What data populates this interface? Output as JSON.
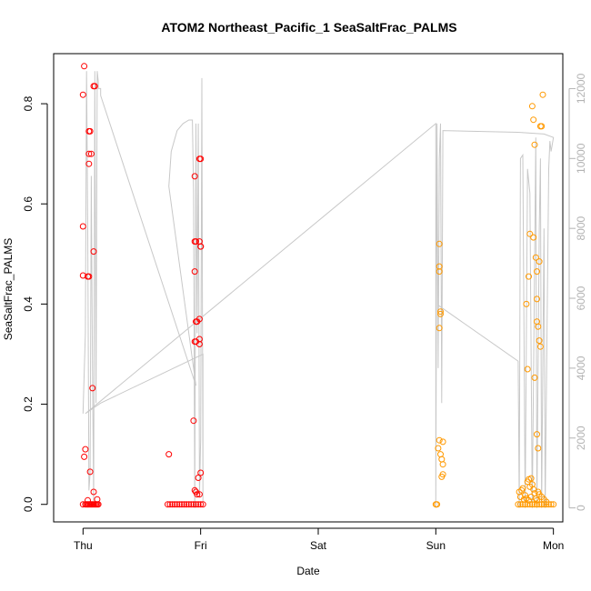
{
  "chart_data": {
    "type": "scatter",
    "title": "ATOM2 Northeast_Pacific_1 SeaSaltFrac_PALMS",
    "xlabel": "Date",
    "ylabel": "SeaSaltFrac_PALMS",
    "x_ticks": [
      "Thu",
      "Fri",
      "Sat",
      "Sun",
      "Mon"
    ],
    "x_range_days": [
      -0.25,
      4.08
    ],
    "y_left_ticks": [
      "0.0",
      "0.2",
      "0.4",
      "0.6",
      "0.8"
    ],
    "y_left_range": [
      -0.035,
      0.9
    ],
    "y_right_ticks": [
      "0",
      "2000",
      "4000",
      "6000",
      "8000",
      "10000",
      "12000"
    ],
    "y_right_range": [
      -400,
      13000
    ],
    "grid": false,
    "colors": {
      "thu_fri": "#ff0000",
      "sun_mon": "#ff9900",
      "altitude_line": "#c8c8c8",
      "right_axis": "#b3b3b3",
      "frame": "#000000"
    },
    "series": [
      {
        "color_key": "thu_fri",
        "points": [
          [
            0.01,
            0.875
          ],
          [
            0.0,
            0.818
          ],
          [
            0.0,
            0.555
          ],
          [
            0.0,
            0.457
          ],
          [
            0.02,
            0.11
          ],
          [
            0.01,
            0.095
          ],
          [
            0.05,
            0.745
          ],
          [
            0.06,
            0.745
          ],
          [
            0.05,
            0.7
          ],
          [
            0.07,
            0.7
          ],
          [
            0.05,
            0.68
          ],
          [
            0.04,
            0.455
          ],
          [
            0.05,
            0.455
          ],
          [
            0.09,
            0.835
          ],
          [
            0.1,
            0.835
          ],
          [
            0.09,
            0.505
          ],
          [
            0.08,
            0.232
          ],
          [
            0.06,
            0.065
          ],
          [
            0.09,
            0.025
          ],
          [
            0.12,
            0.01
          ],
          [
            0.04,
            0.008
          ],
          [
            0.0,
            0.0
          ],
          [
            0.02,
            0.0
          ],
          [
            0.03,
            0.0
          ],
          [
            0.04,
            0.0
          ],
          [
            0.05,
            0.0
          ],
          [
            0.06,
            0.0
          ],
          [
            0.07,
            0.0
          ],
          [
            0.08,
            0.0
          ],
          [
            0.09,
            0.0
          ],
          [
            0.1,
            0.0
          ],
          [
            0.11,
            0.0
          ],
          [
            0.12,
            0.0
          ],
          [
            0.13,
            0.0
          ],
          [
            0.73,
            0.1
          ],
          [
            0.95,
            0.655
          ],
          [
            0.95,
            0.525
          ],
          [
            0.96,
            0.525
          ],
          [
            0.99,
            0.525
          ],
          [
            1.0,
            0.515
          ],
          [
            1.0,
            0.515
          ],
          [
            0.99,
            0.69
          ],
          [
            1.0,
            0.69
          ],
          [
            0.95,
            0.465
          ],
          [
            0.96,
            0.365
          ],
          [
            0.97,
            0.365
          ],
          [
            0.99,
            0.37
          ],
          [
            0.95,
            0.325
          ],
          [
            0.96,
            0.325
          ],
          [
            0.99,
            0.33
          ],
          [
            0.99,
            0.32
          ],
          [
            0.94,
            0.167
          ],
          [
            1.0,
            0.063
          ],
          [
            0.98,
            0.053
          ],
          [
            0.95,
            0.028
          ],
          [
            0.96,
            0.025
          ],
          [
            0.97,
            0.02
          ],
          [
            0.99,
            0.02
          ],
          [
            0.72,
            0.0
          ],
          [
            0.74,
            0.0
          ],
          [
            0.76,
            0.0
          ],
          [
            0.78,
            0.0
          ],
          [
            0.8,
            0.0
          ],
          [
            0.82,
            0.0
          ],
          [
            0.84,
            0.0
          ],
          [
            0.86,
            0.0
          ],
          [
            0.88,
            0.0
          ],
          [
            0.9,
            0.0
          ],
          [
            0.92,
            0.0
          ],
          [
            0.94,
            0.0
          ],
          [
            0.96,
            0.0
          ],
          [
            0.98,
            0.0
          ],
          [
            1.0,
            0.0
          ],
          [
            1.02,
            0.0
          ]
        ]
      },
      {
        "color_key": "sun_mon",
        "points": [
          [
            3.0,
            0.0
          ],
          [
            3.01,
            0.0
          ],
          [
            3.03,
            0.52
          ],
          [
            3.03,
            0.475
          ],
          [
            3.03,
            0.465
          ],
          [
            3.04,
            0.385
          ],
          [
            3.04,
            0.38
          ],
          [
            3.03,
            0.352
          ],
          [
            3.03,
            0.128
          ],
          [
            3.06,
            0.125
          ],
          [
            3.02,
            0.112
          ],
          [
            3.04,
            0.1
          ],
          [
            3.05,
            0.09
          ],
          [
            3.06,
            0.08
          ],
          [
            3.06,
            0.06
          ],
          [
            3.05,
            0.055
          ],
          [
            3.78,
            0.27
          ],
          [
            3.79,
            0.455
          ],
          [
            3.8,
            0.54
          ],
          [
            3.83,
            0.533
          ],
          [
            3.77,
            0.4
          ],
          [
            3.85,
            0.493
          ],
          [
            3.86,
            0.465
          ],
          [
            3.88,
            0.485
          ],
          [
            3.86,
            0.41
          ],
          [
            3.86,
            0.365
          ],
          [
            3.87,
            0.355
          ],
          [
            3.88,
            0.327
          ],
          [
            3.89,
            0.315
          ],
          [
            3.84,
            0.253
          ],
          [
            3.86,
            0.14
          ],
          [
            3.87,
            0.112
          ],
          [
            3.82,
            0.795
          ],
          [
            3.83,
            0.768
          ],
          [
            3.91,
            0.818
          ],
          [
            3.89,
            0.755
          ],
          [
            3.9,
            0.755
          ],
          [
            3.84,
            0.718
          ],
          [
            3.71,
            0.025
          ],
          [
            3.72,
            0.015
          ],
          [
            3.73,
            0.028
          ],
          [
            3.74,
            0.032
          ],
          [
            3.76,
            0.018
          ],
          [
            3.78,
            0.045
          ],
          [
            3.79,
            0.05
          ],
          [
            3.8,
            0.035
          ],
          [
            3.81,
            0.052
          ],
          [
            3.82,
            0.04
          ],
          [
            3.83,
            0.03
          ],
          [
            3.84,
            0.022
          ],
          [
            3.85,
            0.012
          ],
          [
            3.86,
            0.008
          ],
          [
            3.87,
            0.025
          ],
          [
            3.88,
            0.02
          ],
          [
            3.9,
            0.015
          ],
          [
            3.92,
            0.01
          ],
          [
            3.94,
            0.005
          ],
          [
            3.77,
            0.012
          ],
          [
            3.79,
            0.008
          ],
          [
            3.81,
            0.015
          ],
          [
            3.75,
            0.01
          ],
          [
            3.7,
            0.0
          ],
          [
            3.72,
            0.0
          ],
          [
            3.74,
            0.0
          ],
          [
            3.76,
            0.0
          ],
          [
            3.78,
            0.0
          ],
          [
            3.8,
            0.0
          ],
          [
            3.82,
            0.0
          ],
          [
            3.84,
            0.0
          ],
          [
            3.86,
            0.0
          ],
          [
            3.88,
            0.0
          ],
          [
            3.9,
            0.0
          ],
          [
            3.92,
            0.0
          ],
          [
            3.94,
            0.0
          ],
          [
            3.96,
            0.0
          ],
          [
            3.98,
            0.0
          ],
          [
            4.0,
            0.0
          ]
        ]
      }
    ],
    "altitude_trace": {
      "axis": "right",
      "points": [
        [
          0.0,
          2700
        ],
        [
          0.02,
          5000
        ],
        [
          0.03,
          12500
        ],
        [
          0.04,
          8000
        ],
        [
          0.05,
          500
        ],
        [
          0.06,
          1000
        ],
        [
          0.07,
          9500
        ],
        [
          0.08,
          4000
        ],
        [
          0.09,
          200
        ],
        [
          0.1,
          12500
        ],
        [
          0.11,
          3000
        ],
        [
          0.12,
          12500
        ],
        [
          0.13,
          12200
        ],
        [
          0.13,
          12000
        ],
        [
          0.15,
          12000
        ],
        [
          0.15,
          11800
        ],
        [
          0.96,
          3500
        ],
        [
          0.73,
          9200
        ],
        [
          0.75,
          10200
        ],
        [
          0.8,
          10800
        ],
        [
          0.85,
          11000
        ],
        [
          0.9,
          11100
        ],
        [
          0.93,
          11100
        ],
        [
          0.94,
          9000
        ],
        [
          0.95,
          0
        ],
        [
          0.96,
          11000
        ],
        [
          0.97,
          5000
        ],
        [
          0.98,
          11000
        ],
        [
          0.99,
          300
        ],
        [
          1.0,
          2000
        ],
        [
          1.01,
          12300
        ],
        [
          1.02,
          200
        ],
        [
          1.02,
          4400
        ],
        [
          0.15,
          3000
        ],
        [
          0.02,
          2700
        ],
        [
          3.0,
          11000
        ],
        [
          3.0,
          0
        ],
        [
          3.01,
          11000
        ],
        [
          3.02,
          4000
        ],
        [
          3.03,
          10000
        ],
        [
          3.04,
          11000
        ],
        [
          3.05,
          3000
        ],
        [
          3.06,
          10800
        ],
        [
          3.7,
          10750
        ],
        [
          3.92,
          10700
        ],
        [
          4.0,
          10600
        ],
        [
          3.98,
          10200
        ],
        [
          3.97,
          10500
        ],
        [
          3.96,
          9700
        ],
        [
          3.93,
          0
        ],
        [
          3.92,
          8000
        ],
        [
          3.9,
          0
        ],
        [
          3.89,
          10000
        ],
        [
          3.88,
          8000
        ],
        [
          3.86,
          0
        ],
        [
          3.85,
          10600
        ],
        [
          3.82,
          0
        ],
        [
          3.8,
          9000
        ],
        [
          3.78,
          9700
        ],
        [
          3.76,
          0
        ],
        [
          3.74,
          10100
        ],
        [
          3.72,
          10000
        ],
        [
          3.71,
          0
        ],
        [
          3.7,
          4200
        ],
        [
          3.02,
          5800
        ]
      ]
    }
  }
}
